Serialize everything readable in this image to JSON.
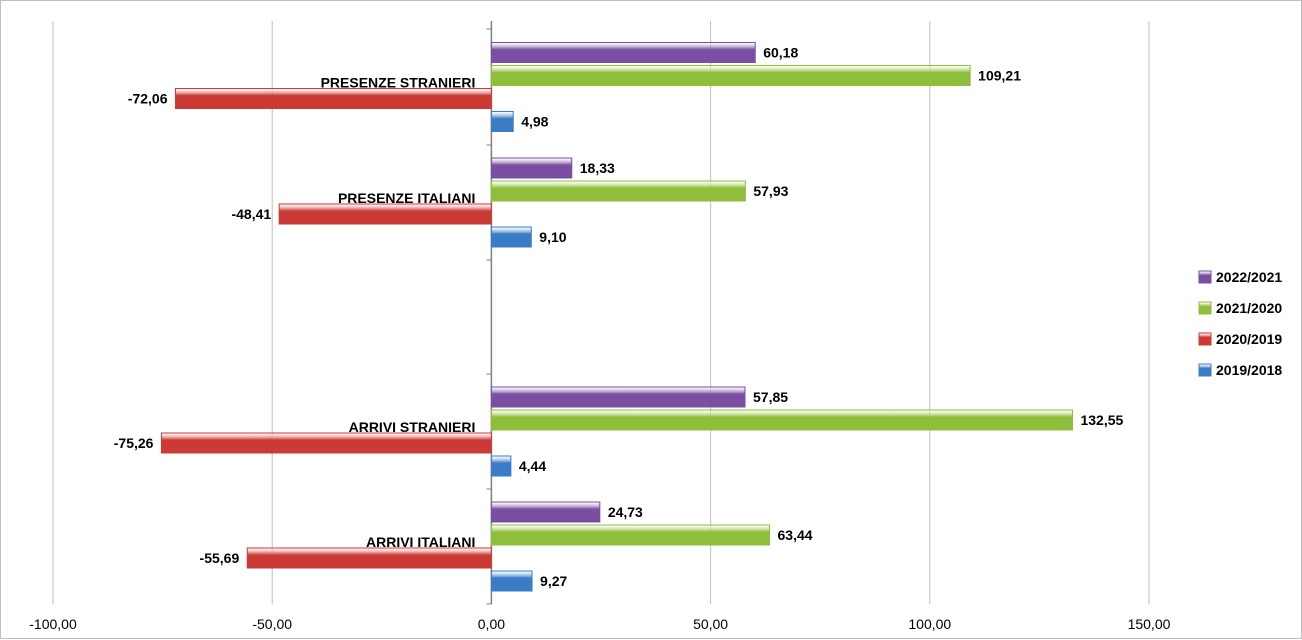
{
  "chart_data": {
    "type": "bar",
    "orientation": "horizontal",
    "categories": [
      "PRESENZE STRANIERI",
      "PRESENZE ITALIANI",
      "ARRIVI STRANIERI",
      "ARRIVI   ITALIANI"
    ],
    "series": [
      {
        "name": "2022/2021",
        "color": "#7a4fa3",
        "values": [
          60.18,
          18.33,
          57.85,
          24.73
        ],
        "labels": [
          "60,18",
          "18,33",
          "57,85",
          "24,73"
        ]
      },
      {
        "name": "2021/2020",
        "color": "#8fbf3a",
        "values": [
          109.21,
          57.93,
          132.55,
          63.44
        ],
        "labels": [
          "109,21",
          "57,93",
          "132,55",
          "63,44"
        ]
      },
      {
        "name": "2020/2019",
        "color": "#cc3a36",
        "values": [
          -72.06,
          -48.41,
          -75.26,
          -55.69
        ],
        "labels": [
          "-72,06",
          "-48,41",
          "-75,26",
          "-55,69"
        ]
      },
      {
        "name": "2019/2018",
        "color": "#3a7cc6",
        "values": [
          4.98,
          9.1,
          4.44,
          9.27
        ],
        "labels": [
          "4,98",
          "9,10",
          "4,44",
          "9,27"
        ]
      }
    ],
    "xlim": [
      -100,
      150
    ],
    "xticks": [
      -100,
      -50,
      0,
      50,
      100,
      150
    ],
    "xtick_labels": [
      "-100,00",
      "-50,00",
      "0,00",
      "50,00",
      "100,00",
      "150,00"
    ],
    "grid": "vertical",
    "legend_position": "right",
    "legend_order": [
      "2022/2021",
      "2021/2020",
      "2020/2019",
      "2019/2018"
    ]
  }
}
